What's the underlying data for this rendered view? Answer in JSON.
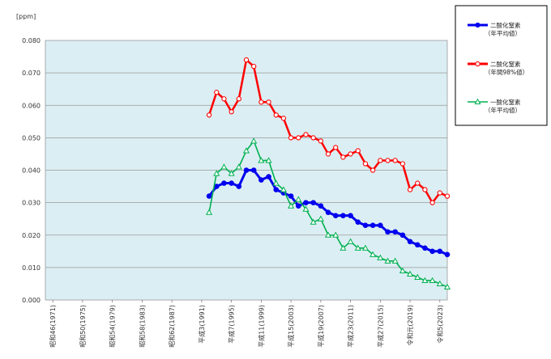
{
  "chart_data": {
    "type": "line",
    "unit_label": "[ppm]",
    "ylim": [
      0,
      0.08
    ],
    "y_ticks": [
      "0.000",
      "0.010",
      "0.020",
      "0.030",
      "0.040",
      "0.050",
      "0.060",
      "0.070",
      "0.080"
    ],
    "x_range": [
      1970,
      2024
    ],
    "x_tick_labels": [
      {
        "year": 1971,
        "label": "昭和46(1971)"
      },
      {
        "year": 1975,
        "label": "昭和50(1975)"
      },
      {
        "year": 1979,
        "label": "昭和54(1979)"
      },
      {
        "year": 1983,
        "label": "昭和58(1983)"
      },
      {
        "year": 1987,
        "label": "昭和62(1987)"
      },
      {
        "year": 1991,
        "label": "平成3(1991)"
      },
      {
        "year": 1995,
        "label": "平成7(1995)"
      },
      {
        "year": 1999,
        "label": "平成11(1999)"
      },
      {
        "year": 2003,
        "label": "平成15(2003)"
      },
      {
        "year": 2007,
        "label": "平成19(2007)"
      },
      {
        "year": 2011,
        "label": "平成23(2011)"
      },
      {
        "year": 2015,
        "label": "平成27(2015)"
      },
      {
        "year": 2019,
        "label": "令和元(2019)"
      },
      {
        "year": 2023,
        "label": "令和5(2023)"
      }
    ],
    "grid": true,
    "legend_position": "right",
    "background_color": "#dbeef3",
    "series": [
      {
        "name": "二酸化窒素",
        "name_sub": "（年平均値）",
        "color": "#0000ee",
        "marker": "filled-circle",
        "x": [
          1992,
          1993,
          1994,
          1995,
          1996,
          1997,
          1998,
          1999,
          2000,
          2001,
          2002,
          2003,
          2004,
          2005,
          2006,
          2007,
          2008,
          2009,
          2010,
          2011,
          2012,
          2013,
          2014,
          2015,
          2016,
          2017,
          2018,
          2019,
          2020,
          2021,
          2022,
          2023,
          2024
        ],
        "values": [
          0.032,
          0.035,
          0.036,
          0.036,
          0.035,
          0.04,
          0.04,
          0.037,
          0.038,
          0.034,
          0.033,
          0.032,
          0.029,
          0.03,
          0.03,
          0.029,
          0.027,
          0.026,
          0.026,
          0.026,
          0.024,
          0.023,
          0.023,
          0.023,
          0.021,
          0.021,
          0.02,
          0.018,
          0.017,
          0.016,
          0.015,
          0.015,
          0.014
        ]
      },
      {
        "name": "二酸化窒素",
        "name_sub": "（年間98%値）",
        "color": "#ff0000",
        "marker": "open-circle",
        "x": [
          1992,
          1993,
          1994,
          1995,
          1996,
          1997,
          1998,
          1999,
          2000,
          2001,
          2002,
          2003,
          2004,
          2005,
          2006,
          2007,
          2008,
          2009,
          2010,
          2011,
          2012,
          2013,
          2014,
          2015,
          2016,
          2017,
          2018,
          2019,
          2020,
          2021,
          2022,
          2023,
          2024
        ],
        "values": [
          0.057,
          0.064,
          0.062,
          0.058,
          0.062,
          0.074,
          0.072,
          0.061,
          0.061,
          0.057,
          0.056,
          0.05,
          0.05,
          0.051,
          0.05,
          0.049,
          0.045,
          0.047,
          0.044,
          0.045,
          0.046,
          0.042,
          0.04,
          0.043,
          0.043,
          0.043,
          0.042,
          0.034,
          0.036,
          0.034,
          0.03,
          0.033,
          0.032
        ]
      },
      {
        "name": "一酸化窒素",
        "name_sub": "（年平均値）",
        "color": "#00b050",
        "marker": "open-triangle",
        "x": [
          1992,
          1993,
          1994,
          1995,
          1996,
          1997,
          1998,
          1999,
          2000,
          2001,
          2002,
          2003,
          2004,
          2005,
          2006,
          2007,
          2008,
          2009,
          2010,
          2011,
          2012,
          2013,
          2014,
          2015,
          2016,
          2017,
          2018,
          2019,
          2020,
          2021,
          2022,
          2023,
          2024
        ],
        "values": [
          0.027,
          0.039,
          0.041,
          0.039,
          0.041,
          0.046,
          0.049,
          0.043,
          0.043,
          0.036,
          0.034,
          0.029,
          0.031,
          0.028,
          0.024,
          0.025,
          0.02,
          0.02,
          0.016,
          0.018,
          0.016,
          0.016,
          0.014,
          0.013,
          0.012,
          0.012,
          0.009,
          0.008,
          0.007,
          0.006,
          0.006,
          0.005,
          0.004
        ]
      }
    ]
  }
}
